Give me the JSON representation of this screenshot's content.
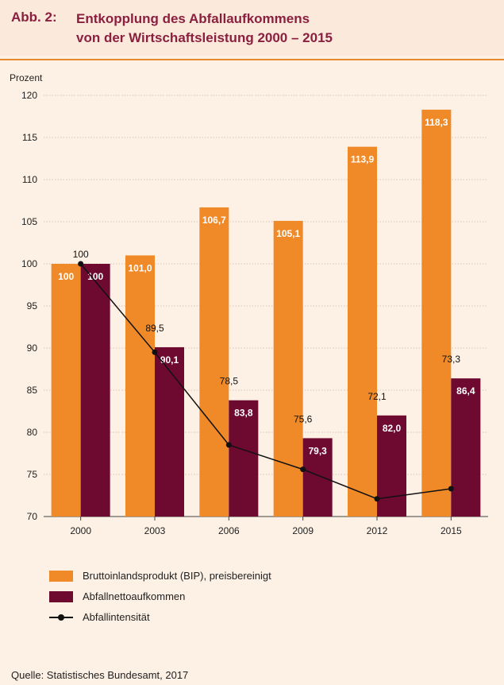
{
  "header": {
    "label": "Abb. 2:",
    "title_line1": "Entkopplung des Abfallaufkommens",
    "title_line2": "von der Wirtschaftsleistung 2000 – 2015"
  },
  "chart_data": {
    "type": "bar",
    "ylabel": "Prozent",
    "ylim": [
      70,
      120
    ],
    "yticks": [
      70,
      75,
      80,
      85,
      90,
      95,
      100,
      105,
      110,
      115,
      120
    ],
    "categories": [
      "2000",
      "2003",
      "2006",
      "2009",
      "2012",
      "2015"
    ],
    "grid": true,
    "series": [
      {
        "name": "Bruttoinlandsprodukt (BIP), preisbereinigt",
        "type": "bar",
        "color": "#f08a28",
        "values": [
          100,
          101.0,
          106.7,
          105.1,
          113.9,
          118.3
        ],
        "labels": [
          "100",
          "101,0",
          "106,7",
          "105,1",
          "113,9",
          "118,3"
        ]
      },
      {
        "name": "Abfallnettoaufkommen",
        "type": "bar",
        "color": "#6e0a2f",
        "values": [
          100,
          90.1,
          83.8,
          79.3,
          82.0,
          86.4
        ],
        "labels": [
          "100",
          "90,1",
          "83,8",
          "79,3",
          "82,0",
          "86,4"
        ]
      },
      {
        "name": "Abfallintensität",
        "type": "line",
        "color": "#111111",
        "values": [
          100,
          89.5,
          78.5,
          75.6,
          72.1,
          73.3
        ],
        "labels": [
          "100",
          "89,5",
          "78,5",
          "75,6",
          "72,1",
          "73,3"
        ]
      }
    ]
  },
  "source": "Quelle: Statistisches Bundesamt, 2017"
}
